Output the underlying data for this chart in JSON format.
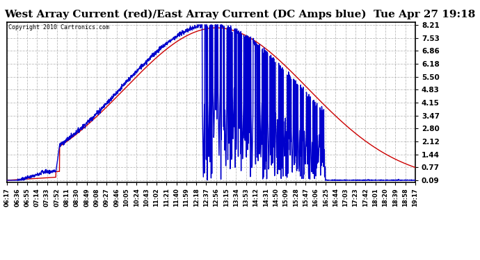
{
  "title": "West Array Current (red)/East Array Current (DC Amps blue)  Tue Apr 27 19:18",
  "copyright_text": "Copyright 2010 Cartronics.com",
  "y_ticks": [
    0.09,
    0.77,
    1.44,
    2.12,
    2.8,
    3.47,
    4.15,
    4.83,
    5.5,
    6.18,
    6.86,
    7.53,
    8.21
  ],
  "y_min": 0.09,
  "y_max": 8.21,
  "background_color": "#ffffff",
  "plot_bg_color": "#ffffff",
  "grid_color": "#aaaaaa",
  "title_fontsize": 11,
  "x_labels": [
    "06:17",
    "06:36",
    "06:55",
    "07:14",
    "07:33",
    "07:52",
    "08:11",
    "08:30",
    "08:49",
    "09:08",
    "09:27",
    "09:46",
    "10:05",
    "10:24",
    "10:43",
    "11:02",
    "11:21",
    "11:40",
    "11:59",
    "12:18",
    "12:37",
    "12:56",
    "13:15",
    "13:34",
    "13:53",
    "14:12",
    "14:31",
    "14:50",
    "15:09",
    "15:28",
    "15:47",
    "16:06",
    "16:25",
    "16:44",
    "17:03",
    "17:23",
    "17:42",
    "18:01",
    "18:20",
    "18:39",
    "18:58",
    "19:17"
  ],
  "red_color": "#cc0000",
  "blue_color": "#0000cc",
  "line_width": 1.0
}
